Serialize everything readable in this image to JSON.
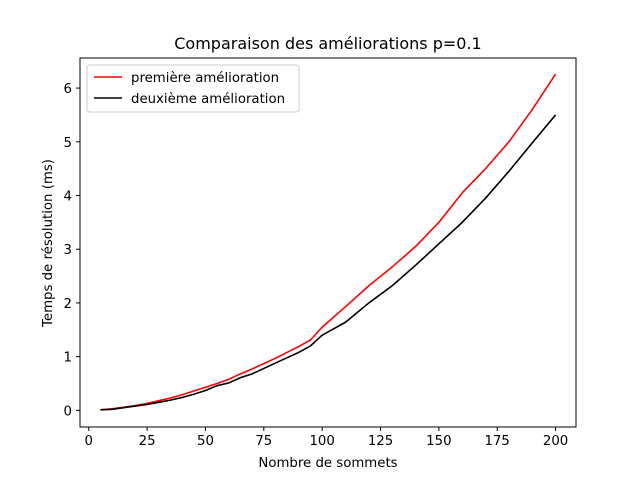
{
  "chart_data": {
    "type": "line",
    "title": "Comparaison des améliorations p=0.1",
    "xlabel": "Nombre de sommets",
    "ylabel": "Temps de résolution (ms)",
    "xlim": [
      -3.75,
      208.75
    ],
    "ylim": [
      -0.31,
      6.56
    ],
    "xticks": [
      0,
      25,
      50,
      75,
      100,
      125,
      150,
      175,
      200
    ],
    "yticks": [
      0,
      1,
      2,
      3,
      4,
      5,
      6
    ],
    "grid": false,
    "legend_position": "top-left",
    "series": [
      {
        "name": "première amélioration",
        "color": "#ff0000",
        "x": [
          5,
          10,
          15,
          20,
          25,
          30,
          35,
          40,
          45,
          50,
          55,
          60,
          65,
          70,
          75,
          80,
          85,
          90,
          95,
          100,
          110,
          120,
          130,
          140,
          150,
          160,
          170,
          180,
          190,
          200
        ],
        "y": [
          0.01,
          0.03,
          0.06,
          0.09,
          0.13,
          0.18,
          0.23,
          0.29,
          0.36,
          0.43,
          0.5,
          0.58,
          0.68,
          0.77,
          0.87,
          0.97,
          1.08,
          1.19,
          1.31,
          1.55,
          1.93,
          2.32,
          2.67,
          3.05,
          3.5,
          4.05,
          4.5,
          5.0,
          5.6,
          6.26
        ]
      },
      {
        "name": "deuxième amélioration",
        "color": "#000000",
        "x": [
          5,
          10,
          15,
          20,
          25,
          30,
          35,
          40,
          45,
          50,
          55,
          60,
          65,
          70,
          75,
          80,
          85,
          90,
          95,
          100,
          110,
          120,
          130,
          140,
          150,
          160,
          170,
          180,
          190,
          200
        ],
        "y": [
          0.01,
          0.02,
          0.05,
          0.08,
          0.11,
          0.15,
          0.19,
          0.24,
          0.3,
          0.37,
          0.46,
          0.51,
          0.61,
          0.68,
          0.78,
          0.88,
          0.98,
          1.08,
          1.2,
          1.4,
          1.64,
          2.0,
          2.32,
          2.7,
          3.1,
          3.5,
          3.95,
          4.45,
          4.98,
          5.5
        ]
      }
    ]
  }
}
